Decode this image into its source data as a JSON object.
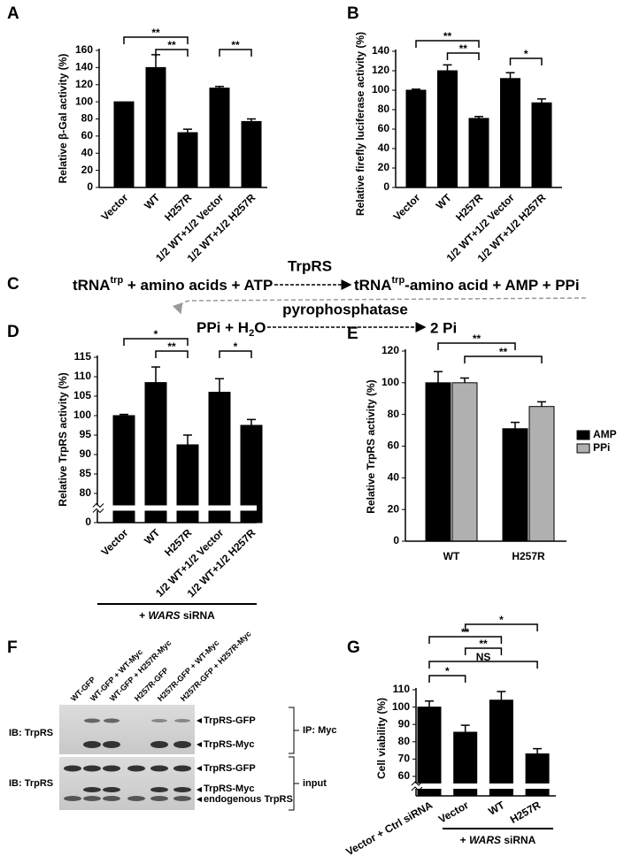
{
  "chart_data": [
    {
      "type": "bar",
      "panel": "A",
      "ylabel": "Relative β-Gal activity (%)",
      "categories": [
        "Vector",
        "WT",
        "H257R",
        "1/2 WT+1/2 Vector",
        "1/2 WT+1/2 H257R"
      ],
      "values": [
        100,
        140,
        64,
        116,
        77
      ],
      "errors": [
        0,
        15,
        4,
        2,
        3
      ],
      "color": "#000000",
      "ylim": [
        0,
        160
      ],
      "yticks": [
        0,
        20,
        40,
        60,
        80,
        100,
        120,
        140,
        160
      ],
      "annotations": [
        "**",
        "**",
        "**"
      ]
    },
    {
      "type": "bar",
      "panel": "B",
      "ylabel": "Relative firefly luciferase activity (%)",
      "categories": [
        "Vector",
        "WT",
        "H257R",
        "1/2 WT+1/2 Vector",
        "1/2 WT+1/2 H257R"
      ],
      "values": [
        100,
        120,
        71,
        112,
        87
      ],
      "errors": [
        1,
        6,
        2,
        6,
        4
      ],
      "color": "#000000",
      "ylim": [
        0,
        140
      ],
      "yticks": [
        0,
        20,
        40,
        60,
        80,
        100,
        120,
        140
      ],
      "annotations": [
        "**",
        "**",
        "*"
      ]
    },
    {
      "type": "bar",
      "panel": "D",
      "ylabel": "Relative TrpRS activity (%)",
      "categories": [
        "Vector",
        "WT",
        "H257R",
        "1/2 WT+1/2 Vector",
        "1/2 WT+1/2 H257R"
      ],
      "values": [
        100,
        108.5,
        92.5,
        106,
        97.5
      ],
      "errors": [
        0.3,
        4,
        2.5,
        3.5,
        1.5
      ],
      "color": "#000000",
      "ylim": [
        0,
        115
      ],
      "yticks": [
        0,
        80,
        85,
        90,
        95,
        100,
        105,
        110,
        115
      ],
      "axis_break": true,
      "annotations": [
        "*",
        "**",
        "*"
      ],
      "footnote": [
        "+ ",
        "WARS",
        " siRNA"
      ]
    },
    {
      "type": "bar",
      "panel": "E",
      "ylabel": "Relative TrpRS activity (%)",
      "categories": [
        "WT",
        "H257R"
      ],
      "series": [
        {
          "name": "AMP",
          "color": "#000000",
          "values": [
            100,
            71
          ],
          "errors": [
            7,
            4
          ]
        },
        {
          "name": "PPi",
          "color": "#b0b0b0",
          "values": [
            100,
            85
          ],
          "errors": [
            3,
            3
          ]
        }
      ],
      "ylim": [
        0,
        120
      ],
      "yticks": [
        0,
        20,
        40,
        60,
        80,
        100,
        120
      ],
      "legend": "right",
      "annotations": [
        "**",
        "**"
      ]
    },
    {
      "type": "bar",
      "panel": "G",
      "ylabel": "Cell viability (%)",
      "categories": [
        "Vector + Ctrl siRNA",
        "Vector",
        "WT",
        "H257R"
      ],
      "values": [
        100,
        85.5,
        104,
        73
      ],
      "errors": [
        3.5,
        4,
        5,
        3
      ],
      "color": "#000000",
      "ylim": [
        0,
        110
      ],
      "yticks": [
        60,
        70,
        80,
        90,
        100,
        110
      ],
      "axis_break": true,
      "annotations": [
        "*",
        "**",
        "**",
        "NS",
        "*"
      ],
      "footnote": [
        "+ ",
        "WARS",
        " siRNA"
      ]
    }
  ],
  "scheme": {
    "panel": "C",
    "reaction1": {
      "left": {
        "base": "tRNA",
        "sup": "trp",
        "rest": " + amino acids + ATP"
      },
      "enzyme": "TrpRS",
      "right": {
        "base": "tRNA",
        "sup": "trp",
        "rest": "-amino acid + AMP + PPi"
      }
    },
    "reaction2": {
      "left": [
        "PPi + H",
        "2",
        "O"
      ],
      "enzyme": "pyrophosphatase",
      "right": "2 Pi"
    }
  },
  "blot": {
    "panel": "F",
    "lanes": [
      "WT-GFP",
      "WT-GFP + WT-Myc",
      "WT-GFP + H257R-Myc",
      "H257R-GFP",
      "H257R-GFP + WT-Myc",
      "H257R-GFP + H257R-Myc"
    ],
    "row_labels": [
      "IB: TrpRS",
      "IB: TrpRS"
    ],
    "ip_bands": [
      "TrpRS-GFP",
      "TrpRS-Myc"
    ],
    "input_bands": [
      "TrpRS-GFP",
      "TrpRS-Myc",
      "endogenous TrpRS"
    ],
    "groups": [
      "IP: Myc",
      "input"
    ]
  }
}
